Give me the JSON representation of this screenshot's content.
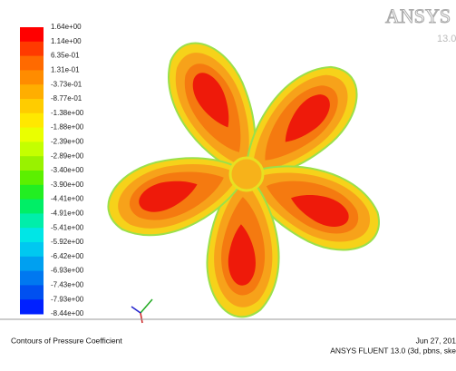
{
  "logo": {
    "brand": "ANSYS",
    "version": "13.0"
  },
  "colorbar": {
    "labels": [
      "1.64e+00",
      "1.14e+00",
      "6.35e-01",
      "1.31e-01",
      "-3.73e-01",
      "-8.77e-01",
      "-1.38e+00",
      "-1.88e+00",
      "-2.39e+00",
      "-2.89e+00",
      "-3.40e+00",
      "-3.90e+00",
      "-4.41e+00",
      "-4.91e+00",
      "-5.41e+00",
      "-5.92e+00",
      "-6.42e+00",
      "-6.93e+00",
      "-7.43e+00",
      "-7.93e+00",
      "-8.44e+00"
    ],
    "colors": [
      "#ff0000",
      "#ff3a00",
      "#ff6a00",
      "#ff8c00",
      "#ffae00",
      "#ffcc00",
      "#ffe800",
      "#eaff00",
      "#c4ff00",
      "#99f200",
      "#5cf000",
      "#22ee22",
      "#00ee66",
      "#00eeaa",
      "#00e6e6",
      "#00c8f0",
      "#00a0f0",
      "#0078f0",
      "#0050f0",
      "#0020ff"
    ]
  },
  "footer": {
    "title": "Contours of Pressure Coefficient",
    "date": "Jun 27, 201",
    "software": "ANSYS FLUENT 13.0 (3d, pbns, ske"
  }
}
